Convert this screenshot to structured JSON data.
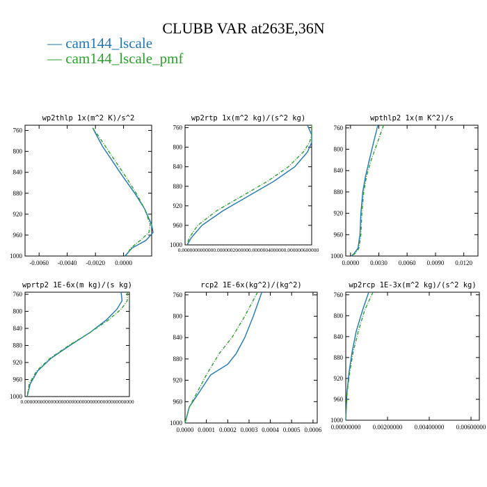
{
  "title": "CLUBB VAR at263E,36N",
  "legend": [
    {
      "label": "cam144_lscale",
      "color": "#1f77b4"
    },
    {
      "label": "cam144_lscale_pmf",
      "color": "#2ca02c"
    }
  ],
  "chart_data": [
    {
      "type": "line",
      "title": "wp2thlp  1x(m^2 K)/s^2",
      "xlim": [
        -0.007,
        0.002
      ],
      "ylim": [
        1000,
        750
      ],
      "yticks": [
        "760",
        "800",
        "840",
        "880",
        "920",
        "960",
        "1000"
      ],
      "xticks": [
        "-0.0060",
        "-0.0040",
        "-0.0020",
        "0.0000"
      ],
      "series": [
        {
          "name": "cam144_lscale",
          "x": [
            -0.0022,
            -0.0019,
            -0.0015,
            -0.001,
            -0.0005,
            0.0,
            0.0008,
            0.0015,
            0.002,
            0.0021,
            0.0016,
            0.0006,
            0.0001
          ],
          "y": [
            755,
            770,
            790,
            810,
            830,
            850,
            880,
            910,
            940,
            955,
            970,
            985,
            1000
          ]
        },
        {
          "name": "cam144_lscale_pmf",
          "x": [
            -0.0022,
            -0.0018,
            -0.0013,
            -0.0008,
            -0.0003,
            0.0002,
            0.0009,
            0.0015,
            0.0019,
            0.0018,
            0.0012,
            0.0005,
            0.0002
          ],
          "y": [
            755,
            770,
            790,
            810,
            830,
            850,
            880,
            910,
            940,
            955,
            970,
            985,
            1000
          ]
        }
      ]
    },
    {
      "type": "line",
      "title": "wp2rtp  1x(m^2 kg)/(s^2 kg)",
      "xlim": [
        0,
        6e-06
      ],
      "ylim": [
        1000,
        755
      ],
      "yticks": [
        "760",
        "800",
        "840",
        "880",
        "920",
        "960",
        "1000"
      ],
      "xticks": [
        "0.0000000000000.0000002000000.0000004000000.000000600000"
      ],
      "series": [
        {
          "name": "cam144_lscale",
          "x": [
            5.8e-06,
            6e-06,
            6e-06,
            5.8e-06,
            5.2e-06,
            4.2e-06,
            3e-06,
            1.8e-06,
            8e-07,
            3e-07,
            1e-07
          ],
          "y": [
            755,
            775,
            790,
            810,
            840,
            870,
            900,
            930,
            960,
            985,
            1000
          ]
        },
        {
          "name": "cam144_lscale_pmf",
          "x": [
            6e-06,
            6e-06,
            5.9e-06,
            5.6e-06,
            4.9e-06,
            3.9e-06,
            2.7e-06,
            1.5e-06,
            6e-07,
            2e-07,
            1e-07
          ],
          "y": [
            755,
            775,
            790,
            810,
            840,
            870,
            900,
            930,
            960,
            985,
            1000
          ]
        }
      ]
    },
    {
      "type": "line",
      "title": "wpthlp2  1x(m K^2)/s",
      "xlim": [
        -0.0005,
        0.0135
      ],
      "ylim": [
        1000,
        755
      ],
      "yticks": [
        "760",
        "800",
        "840",
        "880",
        "920",
        "960",
        "1000"
      ],
      "xticks": [
        "0.0000",
        "0.0030",
        "0.0060",
        "0.0090",
        "0.0120"
      ],
      "series": [
        {
          "name": "cam144_lscale",
          "x": [
            0.0029,
            0.0024,
            0.002,
            0.0016,
            0.0013,
            0.0011,
            0.001,
            0.0008,
            0.0004,
            0.0001
          ],
          "y": [
            755,
            790,
            820,
            850,
            880,
            920,
            960,
            985,
            995,
            1000
          ]
        },
        {
          "name": "cam144_lscale_pmf",
          "x": [
            0.0035,
            0.0028,
            0.0022,
            0.0017,
            0.0014,
            0.0012,
            0.0011,
            0.0009,
            0.0005,
            0.0001
          ],
          "y": [
            755,
            790,
            820,
            850,
            880,
            920,
            960,
            985,
            995,
            1000
          ]
        }
      ]
    },
    {
      "type": "line",
      "title": "wprtp2  1E-6x(m kg)/(s kg)",
      "xlim": [
        0,
        1
      ],
      "ylim": [
        1000,
        755
      ],
      "yticks": [
        "760",
        "800",
        "840",
        "880",
        "920",
        "960",
        "1000"
      ],
      "xticks": [
        "0.000000000000000000000000000000000000000000"
      ],
      "series": [
        {
          "name": "cam144_lscale",
          "x": [
            0.92,
            0.93,
            0.88,
            0.78,
            0.62,
            0.43,
            0.25,
            0.12,
            0.05,
            0.02
          ],
          "y": [
            755,
            775,
            795,
            820,
            850,
            880,
            910,
            940,
            970,
            1000
          ]
        },
        {
          "name": "cam144_lscale_pmf",
          "x": [
            0.98,
            0.98,
            0.92,
            0.8,
            0.62,
            0.42,
            0.24,
            0.11,
            0.04,
            0.02
          ],
          "y": [
            755,
            775,
            795,
            820,
            850,
            880,
            910,
            940,
            970,
            1000
          ]
        }
      ]
    },
    {
      "type": "line",
      "title": "rcp2  1E-6x(kg^2)/(kg^2)",
      "xlim": [
        0,
        0.00062
      ],
      "ylim": [
        1000,
        755
      ],
      "yticks": [
        "760",
        "800",
        "840",
        "880",
        "920",
        "960",
        "1000"
      ],
      "xticks": [
        "0.0000",
        "0.0001",
        "0.0002",
        "0.0003",
        "0.0004",
        "0.0005",
        "0.0006"
      ],
      "series": [
        {
          "name": "cam144_lscale",
          "x": [
            0.00036,
            0.00032,
            0.00028,
            0.00024,
            0.0002,
            0.00012,
            7e-05,
            2e-05,
            0.0
          ],
          "y": [
            755,
            800,
            840,
            870,
            890,
            910,
            940,
            970,
            1000
          ]
        },
        {
          "name": "cam144_lscale_pmf",
          "x": [
            0.00034,
            0.00028,
            0.00022,
            0.00016,
            0.00013,
            0.0001,
            6e-05,
            2e-05,
            0.0
          ],
          "y": [
            755,
            800,
            840,
            870,
            890,
            910,
            940,
            970,
            1000
          ]
        }
      ]
    },
    {
      "type": "line",
      "title": "wp2rcp  1E-3x(m^2 kg)/(s^2 kg)",
      "xlim": [
        0,
        0.0064
      ],
      "ylim": [
        1000,
        755
      ],
      "yticks": [
        "760",
        "800",
        "840",
        "880",
        "920",
        "960",
        "1000"
      ],
      "xticks": [
        "0.00000000",
        "0.00200000",
        "0.00400000",
        "0.00600000"
      ],
      "series": [
        {
          "name": "cam144_lscale",
          "x": [
            0.0011,
            0.0008,
            0.0005,
            0.0003,
            0.00015,
            5e-05,
            0.0
          ],
          "y": [
            755,
            790,
            830,
            870,
            910,
            950,
            1000
          ]
        },
        {
          "name": "cam144_lscale_pmf",
          "x": [
            0.0013,
            0.0009,
            0.0006,
            0.00035,
            0.00018,
            6e-05,
            0.0
          ],
          "y": [
            755,
            790,
            830,
            870,
            910,
            950,
            1000
          ]
        }
      ]
    }
  ]
}
